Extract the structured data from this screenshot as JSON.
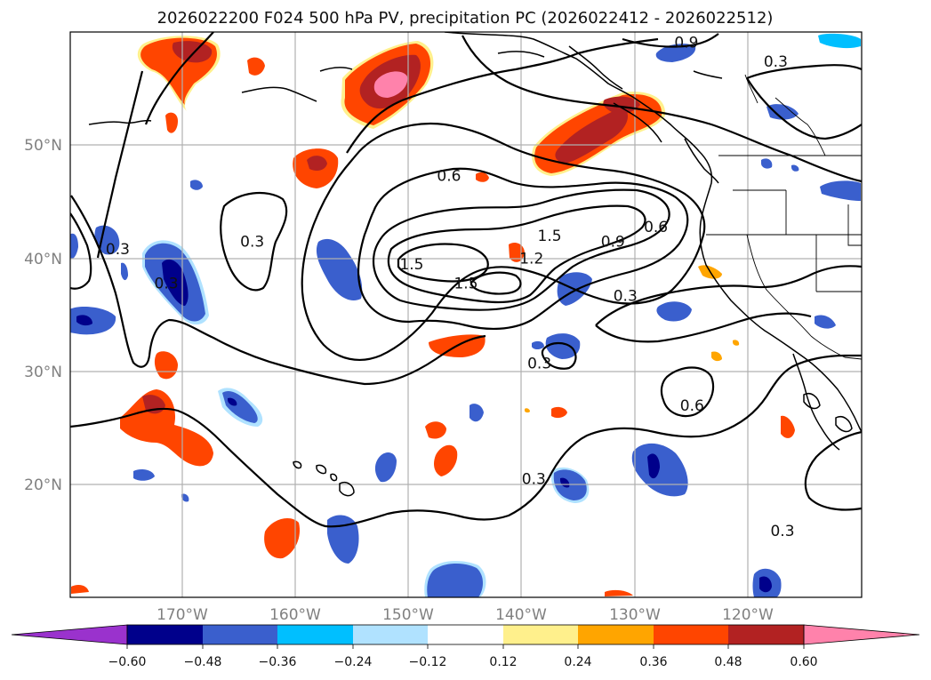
{
  "title": "2026022200 F024 500 hPa PV, precipitation PC (2026022412 - 2026022512)",
  "map": {
    "lon_range": [
      -180,
      -110
    ],
    "lat_range": [
      10,
      60
    ],
    "lon_ticks": [
      {
        "lon": -170,
        "label": "170°W"
      },
      {
        "lon": -160,
        "label": "160°W"
      },
      {
        "lon": -150,
        "label": "150°W"
      },
      {
        "lon": -140,
        "label": "140°W"
      },
      {
        "lon": -130,
        "label": "130°W"
      },
      {
        "lon": -120,
        "label": "120°W"
      }
    ],
    "lat_ticks": [
      {
        "lat": 20,
        "label": "20°N"
      },
      {
        "lat": 30,
        "label": "30°N"
      },
      {
        "lat": 40,
        "label": "40°N"
      },
      {
        "lat": 50,
        "label": "50°N"
      }
    ]
  },
  "pv_contour_labels": [
    {
      "text": "0.9",
      "lon": -125.5,
      "lat": 59.1
    },
    {
      "text": "0.3",
      "lon": -117.6,
      "lat": 57.4
    },
    {
      "text": "0.6",
      "lon": -146.5,
      "lat": 47.3
    },
    {
      "text": "0.3",
      "lon": -163.9,
      "lat": 41.5
    },
    {
      "text": "0.3",
      "lon": -175.8,
      "lat": 40.8
    },
    {
      "text": "0.3",
      "lon": -171.5,
      "lat": 37.8
    },
    {
      "text": "1.5",
      "lon": -137.6,
      "lat": 42.0
    },
    {
      "text": "0.9",
      "lon": -132.0,
      "lat": 41.5
    },
    {
      "text": "0.6",
      "lon": -128.2,
      "lat": 42.8
    },
    {
      "text": "1.5",
      "lon": -149.8,
      "lat": 39.5
    },
    {
      "text": "1.2",
      "lon": -139.2,
      "lat": 40.0
    },
    {
      "text": "1.5",
      "lon": -145.0,
      "lat": 37.8
    },
    {
      "text": "0.3",
      "lon": -130.9,
      "lat": 36.7
    },
    {
      "text": "0.3",
      "lon": -138.5,
      "lat": 30.7
    },
    {
      "text": "0.6",
      "lon": -125.0,
      "lat": 27.0
    },
    {
      "text": "0.3",
      "lon": -139.0,
      "lat": 20.5
    },
    {
      "text": "0.3",
      "lon": -117.0,
      "lat": 15.9
    }
  ],
  "colorbar": {
    "colors": [
      "#9a32cd",
      "#00008b",
      "#3a5fcd",
      "#00bfff",
      "#b0e2ff",
      "#ffffff",
      "#fff08c",
      "#ffa500",
      "#ff4500",
      "#b22222",
      "#ff82ab"
    ],
    "ticks": [
      "−0.60",
      "−0.48",
      "−0.36",
      "−0.24",
      "−0.12",
      "0.12",
      "0.24",
      "0.36",
      "0.48",
      "0.60"
    ]
  }
}
